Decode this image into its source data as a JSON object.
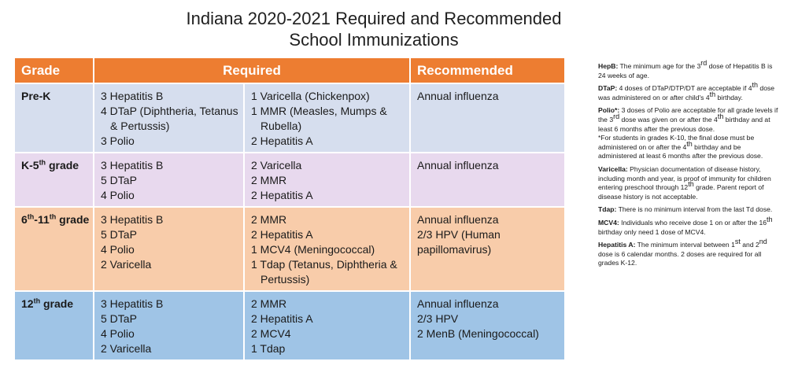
{
  "title": {
    "line1": "Indiana 2020-2021 Required and Recommended",
    "line2": "School Immunizations"
  },
  "table": {
    "headers": {
      "grade": "Grade",
      "required": "Required",
      "recommended": "Recommended"
    },
    "rows": [
      {
        "grade": "Pre-K",
        "required_left": [
          "3 Hepatitis B",
          "4 DTaP (Diphtheria, Tetanus",
          "& Pertussis)",
          "3 Polio"
        ],
        "required_right": [
          "1 Varicella (Chickenpox)",
          "1 MMR (Measles, Mumps &",
          "Rubella)",
          "2 Hepatitis A"
        ],
        "recommended": [
          "Annual influenza"
        ]
      },
      {
        "grade_base": "K-5",
        "grade_sup": "th",
        "grade_tail": " grade",
        "required_left": [
          "3 Hepatitis B",
          "5 DTaP",
          "4 Polio"
        ],
        "required_right": [
          "2 Varicella",
          "2 MMR",
          "2 Hepatitis A"
        ],
        "recommended": [
          "Annual influenza"
        ]
      },
      {
        "grade_a": "6",
        "grade_sup1": "th",
        "grade_b": "-11",
        "grade_sup2": "th",
        "grade_tail": " grade",
        "required_left": [
          "3 Hepatitis B",
          "5 DTaP",
          "4 Polio",
          "2 Varicella"
        ],
        "required_right": [
          "2 MMR",
          "2 Hepatitis A",
          "1 MCV4 (Meningococcal)",
          "1 Tdap (Tetanus, Diphtheria &",
          "Pertussis)"
        ],
        "recommended": [
          "Annual influenza",
          "2/3 HPV (Human",
          "papillomavirus)"
        ]
      },
      {
        "grade_base": "12",
        "grade_sup": "th",
        "grade_tail": " grade",
        "required_left": [
          "3 Hepatitis B",
          "5 DTaP",
          "4 Polio",
          "2 Varicella"
        ],
        "required_right": [
          "2 MMR",
          "2 Hepatitis A",
          "2 MCV4",
          "1 Tdap"
        ],
        "recommended": [
          "Annual influenza",
          "2/3 HPV",
          "2 MenB (Meningococcal)"
        ]
      }
    ]
  },
  "notes": {
    "hepb": {
      "label": "HepB:",
      "t1": " The minimum age for the 3",
      "sup": "rd",
      "t2": " dose of Hepatitis B is 24 weeks of age."
    },
    "dtap": {
      "label": "DTaP:",
      "t1": " 4 doses of DTaP/DTP/DT are acceptable if 4",
      "sup1": "th",
      "t2": " dose was administered on or after child's 4",
      "sup2": "th",
      "t3": " birthday."
    },
    "polio": {
      "label": "Polio*:",
      "t1": " 3 doses of Polio are acceptable for all grade levels if the 3",
      "sup1": "rd",
      "t2": " dose was given on or after the 4",
      "sup2": "th",
      "t3": " birthday and at least 6 months after the previous dose.",
      "s1": "*For students in grades K-10, the final dose must be administered on or after the 4",
      "ssup": "th",
      "s2": " birthday and be administered at least 6 months after the previous dose."
    },
    "varicella": {
      "label": "Varicella:",
      "t1": " Physician documentation of disease history, including month and year, is proof of immunity for children entering preschool through 12",
      "sup": "th",
      "t2": " grade. Parent report of disease history is not acceptable."
    },
    "tdap": {
      "label": "Tdap:",
      "t1": " There is no minimum interval from the last Td dose."
    },
    "mcv4": {
      "label": "MCV4:",
      "t1": " Individuals who receive dose 1 on or after the 16",
      "sup": "th",
      "t2": " birthday only need 1 dose of MCV4."
    },
    "hepa": {
      "label": "Hepatitis A:",
      "t1": " The minimum interval between 1",
      "sup1": "st",
      "t2": " and 2",
      "sup2": "nd",
      "t3": " dose is 6 calendar months. 2 doses are required for all grades K-12."
    }
  }
}
